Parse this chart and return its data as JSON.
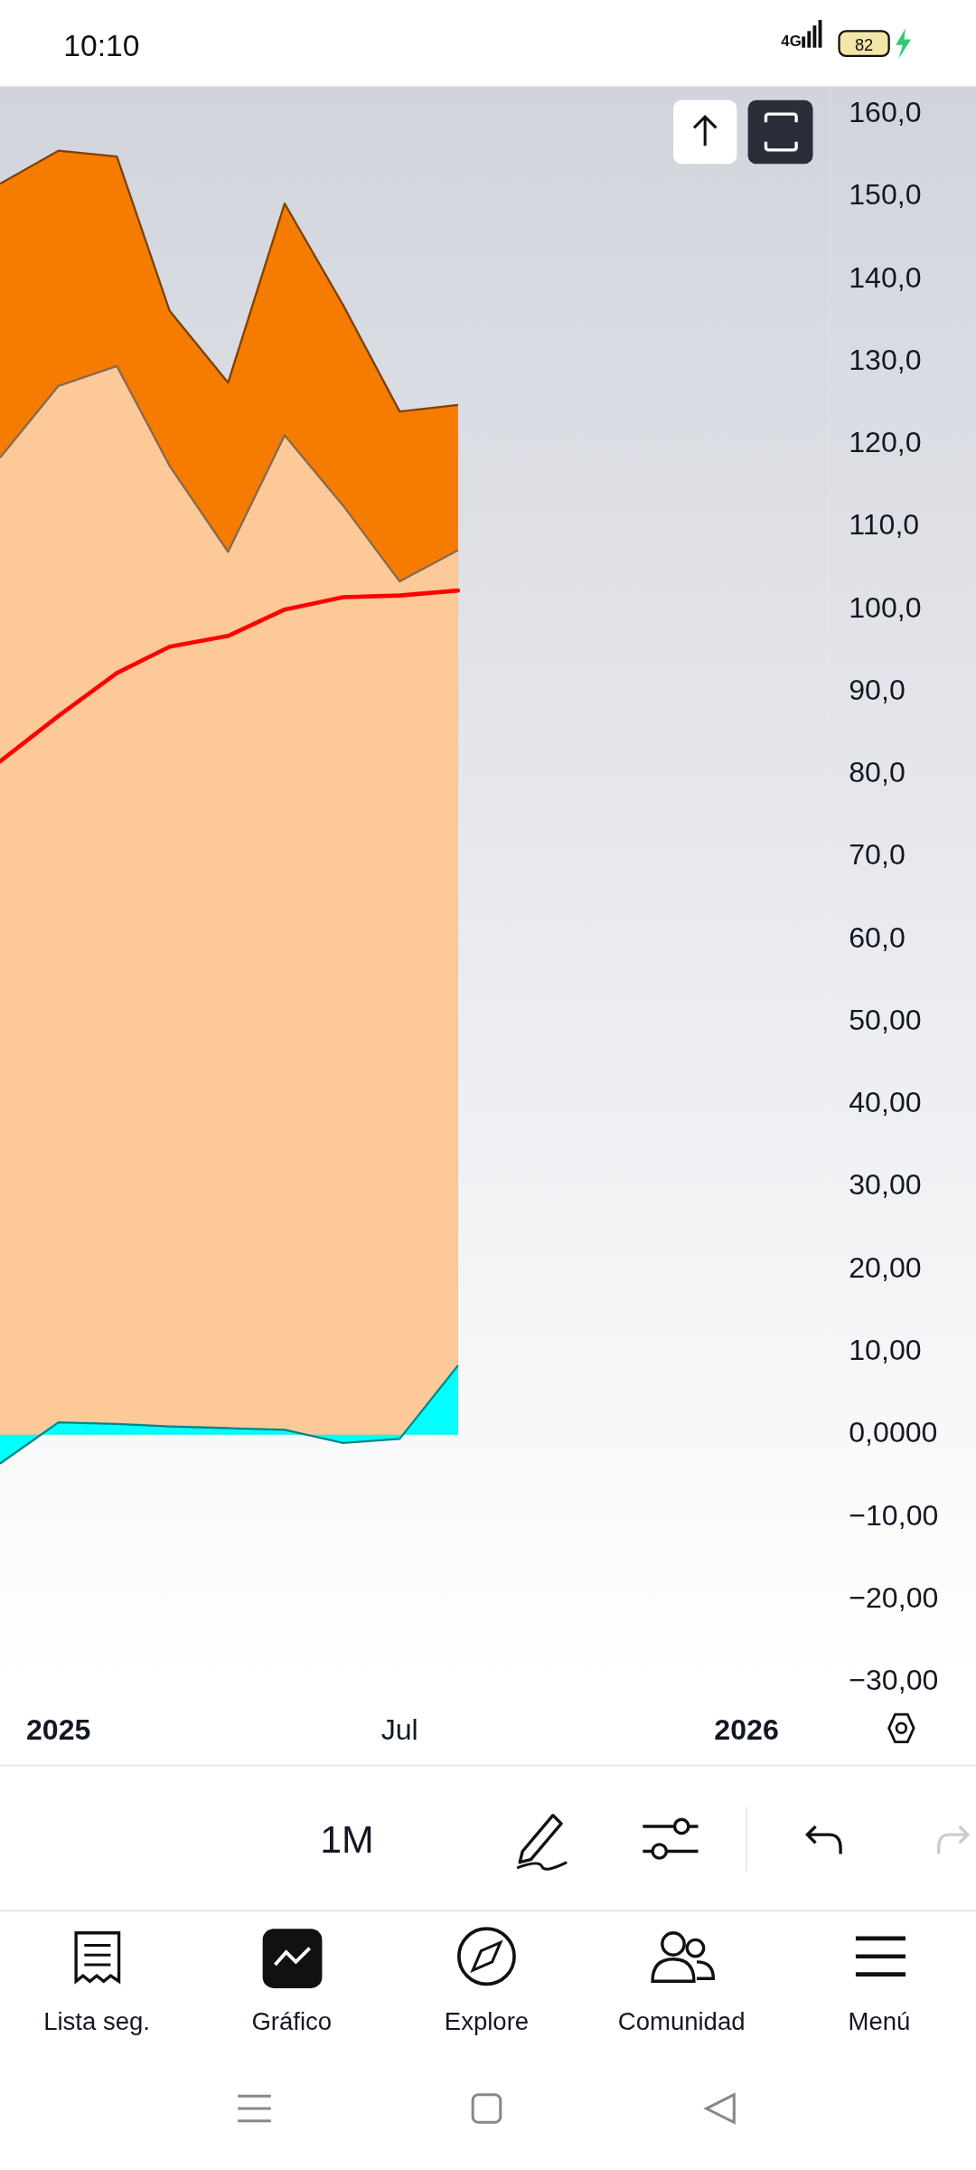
{
  "chart_data": {
    "type": "area",
    "x": [
      "2024-12",
      "2025-01",
      "2025-02",
      "2025-03",
      "2025-04",
      "2025-05",
      "2025-06",
      "2025-07",
      "2025-08"
    ],
    "xlim": [
      "2024-12-01",
      "2026-02-14"
    ],
    "xticks": [
      {
        "value": "2025-01",
        "label": "2025"
      },
      {
        "value": "2025-07",
        "label": "Jul"
      },
      {
        "value": "2026-01",
        "label": "2026"
      }
    ],
    "ylim": [
      -30.7,
      163.4
    ],
    "yticks": [
      {
        "value": 160,
        "label": "160,0"
      },
      {
        "value": 150,
        "label": "150,0"
      },
      {
        "value": 140,
        "label": "140,0"
      },
      {
        "value": 130,
        "label": "130,0"
      },
      {
        "value": 120,
        "label": "120,0"
      },
      {
        "value": 110,
        "label": "110,0"
      },
      {
        "value": 100,
        "label": "100,0"
      },
      {
        "value": 90,
        "label": "90,0"
      },
      {
        "value": 80,
        "label": "80,0"
      },
      {
        "value": 70,
        "label": "70,0"
      },
      {
        "value": 60,
        "label": "60,0"
      },
      {
        "value": 50,
        "label": "50,00"
      },
      {
        "value": 40,
        "label": "40,00"
      },
      {
        "value": 30,
        "label": "30,00"
      },
      {
        "value": 20,
        "label": "20,00"
      },
      {
        "value": 10,
        "label": "10,00"
      },
      {
        "value": 0,
        "label": "0,0000"
      },
      {
        "value": -10,
        "label": "−10,00"
      },
      {
        "value": -20,
        "label": "−20,00"
      },
      {
        "value": -30,
        "label": "−30,00"
      }
    ],
    "series": [
      {
        "color": "#f57c00",
        "values": [
          151.6,
          155.6,
          154.9,
          136.2,
          127.5,
          149.2,
          136.9,
          124.0,
          124.8
        ]
      },
      {
        "color": "#fdc999",
        "values": [
          118.4,
          127.1,
          129.5,
          117.4,
          107.0,
          121.1,
          112.6,
          103.4,
          107.2
        ]
      },
      {
        "type": "line",
        "color": "#ff0000",
        "values": [
          81.6,
          87.1,
          92.3,
          95.5,
          96.8,
          100.0,
          101.5,
          101.7,
          102.3
        ]
      },
      {
        "color": "#00ffff",
        "values": [
          -3.5,
          1.5,
          1.3,
          1.0,
          0.8,
          0.6,
          -1.0,
          -0.5,
          8.4
        ]
      }
    ],
    "annotations": [
      "10:10",
      "4G",
      "82",
      "1M",
      "Lista seg.",
      "Gráfico",
      "Explore",
      "Comunidad",
      "Menú"
    ]
  }
}
